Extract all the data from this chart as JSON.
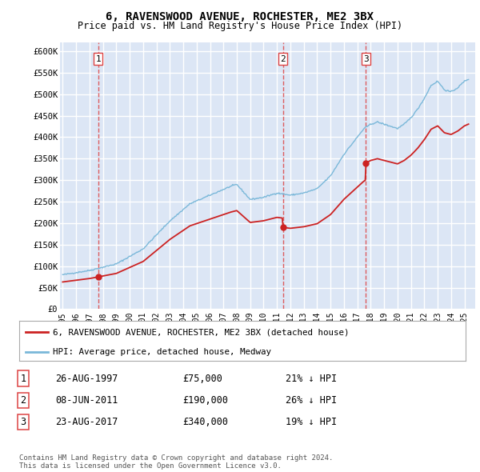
{
  "title": "6, RAVENSWOOD AVENUE, ROCHESTER, ME2 3BX",
  "subtitle": "Price paid vs. HM Land Registry's House Price Index (HPI)",
  "yticks": [
    0,
    50000,
    100000,
    150000,
    200000,
    250000,
    300000,
    350000,
    400000,
    450000,
    500000,
    550000,
    600000
  ],
  "ytick_labels": [
    "£0",
    "£50K",
    "£100K",
    "£150K",
    "£200K",
    "£250K",
    "£300K",
    "£350K",
    "£400K",
    "£450K",
    "£500K",
    "£550K",
    "£600K"
  ],
  "ylim": [
    0,
    620000
  ],
  "xlim_start": 1994.8,
  "xlim_end": 2025.8,
  "xtick_years": [
    1995,
    1996,
    1997,
    1998,
    1999,
    2000,
    2001,
    2002,
    2003,
    2004,
    2005,
    2006,
    2007,
    2008,
    2009,
    2010,
    2011,
    2012,
    2013,
    2014,
    2015,
    2016,
    2017,
    2018,
    2019,
    2020,
    2021,
    2022,
    2023,
    2024,
    2025
  ],
  "sale_dates": [
    1997.65,
    2011.44,
    2017.64
  ],
  "sale_prices": [
    75000,
    190000,
    340000
  ],
  "sale_labels": [
    "1",
    "2",
    "3"
  ],
  "legend_line1": "6, RAVENSWOOD AVENUE, ROCHESTER, ME2 3BX (detached house)",
  "legend_line2": "HPI: Average price, detached house, Medway",
  "table_rows": [
    [
      "1",
      "26-AUG-1997",
      "£75,000",
      "21% ↓ HPI"
    ],
    [
      "2",
      "08-JUN-2011",
      "£190,000",
      "26% ↓ HPI"
    ],
    [
      "3",
      "23-AUG-2017",
      "£340,000",
      "19% ↓ HPI"
    ]
  ],
  "footnote": "Contains HM Land Registry data © Crown copyright and database right 2024.\nThis data is licensed under the Open Government Licence v3.0.",
  "plot_bg_color": "#dce6f5",
  "hpi_color": "#7ab8d9",
  "price_color": "#cc2222",
  "vline_color": "#dd4444",
  "grid_color": "#ffffff",
  "hpi_piecewise": [
    [
      1995.0,
      80000
    ],
    [
      1997.0,
      90000
    ],
    [
      1999.0,
      105000
    ],
    [
      2001.0,
      140000
    ],
    [
      2003.0,
      205000
    ],
    [
      2004.5,
      245000
    ],
    [
      2007.5,
      285000
    ],
    [
      2008.0,
      290000
    ],
    [
      2009.0,
      255000
    ],
    [
      2010.0,
      260000
    ],
    [
      2011.0,
      270000
    ],
    [
      2012.0,
      265000
    ],
    [
      2013.0,
      270000
    ],
    [
      2014.0,
      280000
    ],
    [
      2015.0,
      310000
    ],
    [
      2016.0,
      360000
    ],
    [
      2017.0,
      400000
    ],
    [
      2017.5,
      420000
    ],
    [
      2018.0,
      430000
    ],
    [
      2018.5,
      435000
    ],
    [
      2019.0,
      430000
    ],
    [
      2019.5,
      425000
    ],
    [
      2020.0,
      420000
    ],
    [
      2020.5,
      430000
    ],
    [
      2021.0,
      445000
    ],
    [
      2021.5,
      465000
    ],
    [
      2022.0,
      490000
    ],
    [
      2022.5,
      520000
    ],
    [
      2023.0,
      530000
    ],
    [
      2023.5,
      510000
    ],
    [
      2024.0,
      505000
    ],
    [
      2024.5,
      515000
    ],
    [
      2025.0,
      530000
    ],
    [
      2025.3,
      535000
    ]
  ]
}
